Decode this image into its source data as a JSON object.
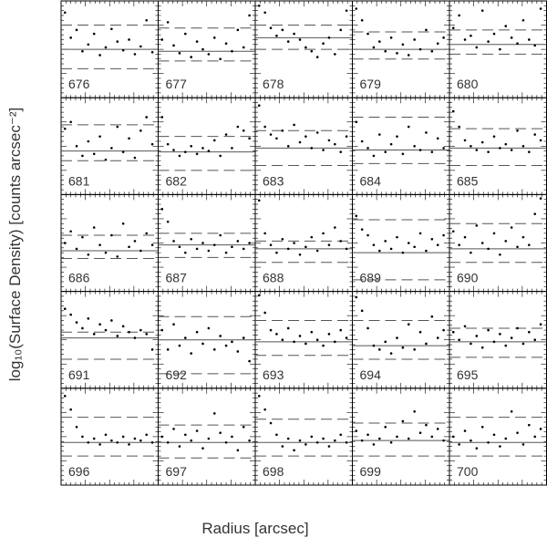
{
  "chart_data": {
    "type": "scatter",
    "y_label": "log₁₀(Surface Density) [counts arcsec⁻²]",
    "x_label": "Radius [arcsec]",
    "x": [
      4,
      10,
      16,
      22,
      28,
      34,
      40,
      46,
      52,
      58,
      64,
      70,
      76,
      82,
      88,
      94
    ],
    "xlim": [
      0,
      100
    ],
    "ylim": [
      0,
      100
    ],
    "color": "#000000",
    "panels": [
      {
        "title": "676",
        "level": 50,
        "dashed": [
          30,
          75
        ],
        "values": [
          88,
          62,
          70,
          48,
          55,
          66,
          44,
          52,
          71,
          58,
          49,
          60,
          45,
          53,
          80,
          47
        ]
      },
      {
        "title": "677",
        "level": 48,
        "dashed": [
          38,
          72
        ],
        "values": [
          60,
          78,
          54,
          46,
          66,
          42,
          58,
          50,
          45,
          62,
          40,
          56,
          48,
          70,
          52,
          85
        ]
      },
      {
        "title": "678",
        "level": 62,
        "dashed": [
          50,
          75
        ],
        "values": [
          95,
          88,
          72,
          64,
          70,
          58,
          66,
          60,
          52,
          48,
          42,
          56,
          62,
          45,
          70,
          90
        ]
      },
      {
        "title": "679",
        "level": 50,
        "dashed": [
          40,
          68
        ],
        "values": [
          92,
          80,
          66,
          52,
          58,
          48,
          62,
          46,
          55,
          44,
          60,
          50,
          70,
          48,
          56,
          62
        ]
      },
      {
        "title": "680",
        "level": 55,
        "dashed": [
          45,
          70
        ],
        "values": [
          72,
          85,
          60,
          64,
          52,
          90,
          58,
          66,
          50,
          74,
          62,
          56,
          80,
          60,
          54,
          92
        ]
      },
      {
        "title": "681",
        "level": 45,
        "dashed": [
          35,
          72
        ],
        "values": [
          68,
          75,
          50,
          40,
          55,
          42,
          60,
          36,
          48,
          70,
          44,
          58,
          38,
          66,
          80,
          52
        ]
      },
      {
        "title": "682",
        "level": 44,
        "dashed": [
          25,
          60
        ],
        "values": [
          80,
          52,
          46,
          40,
          44,
          50,
          42,
          48,
          45,
          56,
          40,
          62,
          48,
          70,
          66,
          58
        ]
      },
      {
        "title": "683",
        "level": 48,
        "dashed": [
          30,
          66
        ],
        "values": [
          92,
          70,
          62,
          58,
          66,
          50,
          72,
          54,
          60,
          48,
          64,
          46,
          56,
          52,
          44,
          60
        ]
      },
      {
        "title": "684",
        "level": 46,
        "dashed": [
          32,
          80
        ],
        "values": [
          75,
          55,
          48,
          40,
          62,
          44,
          52,
          60,
          42,
          70,
          50,
          46,
          64,
          44,
          58,
          48
        ]
      },
      {
        "title": "685",
        "level": 48,
        "dashed": [
          30,
          68
        ],
        "values": [
          86,
          70,
          56,
          50,
          46,
          54,
          44,
          60,
          48,
          52,
          46,
          66,
          50,
          44,
          62,
          56
        ]
      },
      {
        "title": "686",
        "level": 42,
        "dashed": [
          34,
          58
        ],
        "values": [
          50,
          62,
          44,
          56,
          38,
          66,
          48,
          40,
          58,
          36,
          70,
          46,
          52,
          42,
          60,
          48
        ]
      },
      {
        "title": "687",
        "level": 48,
        "dashed": [
          35,
          60
        ],
        "values": [
          85,
          72,
          52,
          46,
          40,
          54,
          44,
          50,
          42,
          48,
          58,
          40,
          46,
          52,
          44,
          50
        ]
      },
      {
        "title": "688",
        "level": 44,
        "dashed": [
          30,
          52
        ],
        "values": [
          94,
          60,
          48,
          40,
          54,
          44,
          50,
          38,
          46,
          56,
          42,
          60,
          48,
          66,
          52,
          44
        ]
      },
      {
        "title": "689",
        "level": 40,
        "dashed": [
          12,
          74
        ],
        "values": [
          78,
          64,
          58,
          48,
          42,
          52,
          44,
          56,
          40,
          50,
          46,
          60,
          42,
          54,
          48,
          58
        ]
      },
      {
        "title": "690",
        "level": 44,
        "dashed": [
          30,
          70
        ],
        "values": [
          62,
          48,
          56,
          40,
          68,
          50,
          44,
          60,
          38,
          52,
          66,
          46,
          56,
          48,
          80,
          96
        ]
      },
      {
        "title": "691",
        "level": 52,
        "dashed": [
          30,
          58
        ],
        "values": [
          82,
          76,
          68,
          62,
          72,
          56,
          66,
          60,
          70,
          54,
          64,
          58,
          52,
          60,
          56,
          40
        ]
      },
      {
        "title": "692",
        "level": 50,
        "dashed": [
          15,
          74
        ],
        "values": [
          60,
          40,
          66,
          44,
          52,
          36,
          58,
          46,
          62,
          40,
          54,
          44,
          48,
          38,
          52,
          28
        ]
      },
      {
        "title": "693",
        "level": 48,
        "dashed": [
          34,
          70
        ],
        "values": [
          96,
          78,
          60,
          56,
          50,
          62,
          48,
          54,
          46,
          58,
          50,
          44,
          56,
          48,
          60,
          52
        ]
      },
      {
        "title": "694",
        "level": 44,
        "dashed": [
          30,
          70
        ],
        "values": [
          94,
          80,
          62,
          44,
          40,
          48,
          36,
          52,
          42,
          66,
          40,
          58,
          46,
          74,
          52,
          60
        ]
      },
      {
        "title": "695",
        "level": 48,
        "dashed": [
          32,
          62
        ],
        "values": [
          58,
          50,
          64,
          46,
          54,
          42,
          60,
          48,
          56,
          44,
          52,
          62,
          46,
          58,
          50,
          66
        ]
      },
      {
        "title": "696",
        "level": 44,
        "dashed": [
          30,
          70
        ],
        "values": [
          92,
          78,
          60,
          50,
          44,
          48,
          42,
          52,
          46,
          44,
          50,
          42,
          48,
          46,
          52,
          44
        ]
      },
      {
        "title": "697",
        "level": 44,
        "dashed": [
          28,
          62
        ],
        "values": [
          50,
          44,
          58,
          40,
          52,
          46,
          56,
          38,
          48,
          74,
          54,
          44,
          50,
          36,
          60,
          46
        ]
      },
      {
        "title": "698",
        "level": 44,
        "dashed": [
          30,
          68
        ],
        "values": [
          92,
          78,
          64,
          52,
          40,
          48,
          36,
          46,
          42,
          50,
          44,
          48,
          40,
          46,
          52,
          44
        ]
      },
      {
        "title": "699",
        "level": 46,
        "dashed": [
          30,
          64
        ],
        "values": [
          56,
          46,
          52,
          42,
          48,
          60,
          44,
          50,
          66,
          48,
          76,
          54,
          62,
          50,
          58,
          46
        ]
      },
      {
        "title": "700",
        "level": 44,
        "dashed": [
          30,
          70
        ],
        "values": [
          50,
          42,
          56,
          46,
          38,
          60,
          44,
          52,
          40,
          48,
          76,
          54,
          42,
          62,
          50,
          58
        ]
      }
    ]
  }
}
